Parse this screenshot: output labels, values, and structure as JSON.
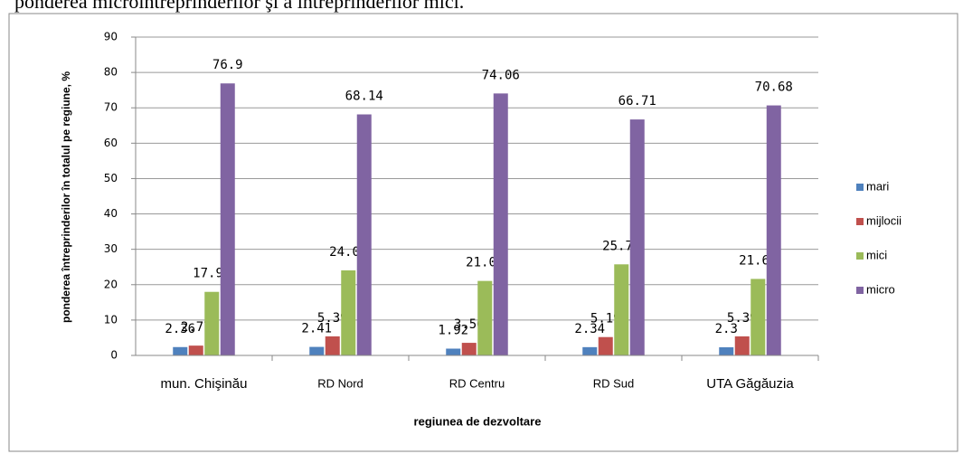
{
  "caption": "ponderea microîntreprinderilor şi a întreprinderilor mici.",
  "chart_data": {
    "type": "bar",
    "x_label": "regiunea de dezvoltare",
    "y_label": "ponderea întreprinderilor în totalul pe regiune, %",
    "categories": [
      "mun. Chişinău",
      "RD Nord",
      "RD Centru",
      "RD Sud",
      "UTA Găgăuzia"
    ],
    "series": [
      {
        "name": "mari",
        "color": "#4f81bd",
        "values": [
          2.36,
          2.41,
          1.92,
          2.34,
          2.3
        ]
      },
      {
        "name": "mijlocii",
        "color": "#c0504d",
        "values": [
          2.77,
          5.39,
          3.56,
          5.19,
          5.39
        ]
      },
      {
        "name": "mici",
        "color": "#9bbb59",
        "values": [
          17.97,
          24.05,
          21.06,
          25.75,
          21.63
        ]
      },
      {
        "name": "micro",
        "color": "#8064a2",
        "values": [
          76.9,
          68.14,
          74.06,
          66.71,
          70.68
        ]
      }
    ],
    "ylim": [
      0,
      90
    ],
    "yticks": [
      0,
      10,
      20,
      30,
      40,
      50,
      60,
      70,
      80,
      90
    ],
    "grid": true,
    "legend": "right"
  }
}
